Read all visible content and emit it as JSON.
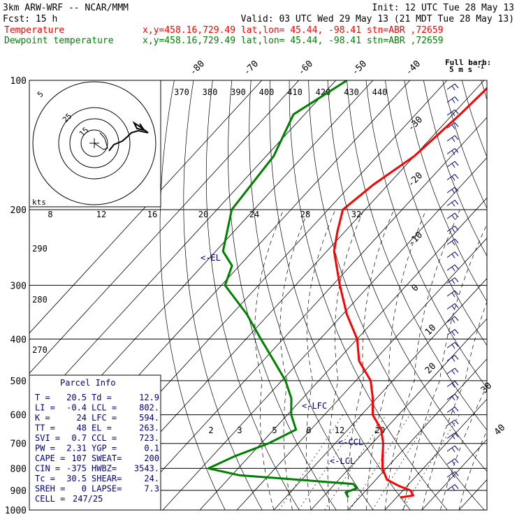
{
  "header": {
    "model": "3km ARW-WRF -- NCAR/MMM",
    "init": "Init: 12 UTC Tue 28 May 13",
    "fcst": "Fcst:   15 h",
    "valid": "Valid: 03 UTC Wed 29 May 13 (21 MDT Tue 28 May 13)",
    "temp_label": "Temperature",
    "temp_loc": "x,y=458.16,729.49   lat,lon= 45.44, -98.41   stn=ABR ,72659",
    "dew_label": "Dewpoint temperature",
    "dew_loc": "x,y=458.16,729.49   lat,lon= 45.44, -98.41   stn=ABR ,72659"
  },
  "colors": {
    "temperature": "#ff0000",
    "dewpoint": "#008000",
    "parcel": "#000080",
    "labels": "#000080"
  },
  "full_barb": {
    "line1": "Full barb:",
    "line2": "5 m s",
    "exponent": "-1"
  },
  "parcel_info": {
    "title": "Parcel Info",
    "rows": [
      [
        "T  =",
        "20.5",
        "Td =",
        "12.9"
      ],
      [
        "LI =",
        "-0.4",
        "LCL =",
        "802."
      ],
      [
        "K  =",
        "24",
        "LFC =",
        "594."
      ],
      [
        "TT =",
        "48",
        "EL =",
        "263."
      ],
      [
        "SVI =",
        "0.7",
        "CCL =",
        "723."
      ],
      [
        "PW =",
        "2.31",
        "YGP =",
        "0.1"
      ],
      [
        "CAPE =",
        "107",
        "SWEAT=",
        "200"
      ],
      [
        "CIN =",
        "-375",
        "HWBZ=",
        "3543."
      ],
      [
        "Tc =",
        "30.5",
        "SHEAR=",
        "24."
      ],
      [
        "SREH =",
        "0",
        "LAPSE=",
        "7.3"
      ],
      [
        "CELL =",
        "247/25",
        "",
        ""
      ]
    ]
  },
  "levels": {
    "el": "<-EL",
    "lfc": "<-LFC",
    "ccl": "<-CCL",
    "lcl": "<-LCL"
  },
  "hodograph": {
    "kts_label": "kts",
    "ring_labels": [
      "5",
      "25",
      "15"
    ]
  },
  "chart_data": {
    "type": "line",
    "title": "",
    "xlabel": "",
    "ylabel": "",
    "y_scale": "log-pressure",
    "ylim_hpa": [
      1000,
      100
    ],
    "pressure_ticks": [
      "100",
      "200",
      "300",
      "400",
      "500",
      "600",
      "700",
      "800",
      "900",
      "1000"
    ],
    "isotherm_labels": [
      "-80",
      "-70",
      "-60",
      "-50",
      "-40",
      "-30",
      "-20",
      "-10",
      "0",
      "10",
      "20",
      "30",
      "40"
    ],
    "dry_adiabat_labels_top": [
      "370",
      "380",
      "390",
      "400",
      "410",
      "420",
      "430",
      "440"
    ],
    "dry_adiabat_labels_left": [
      "290",
      "280",
      "270"
    ],
    "mixing_ratio_labels_mid": [
      "8",
      "12",
      "16",
      "20",
      "24",
      "28",
      "32"
    ],
    "mixing_ratio_labels_low": [
      "2",
      "3",
      "5",
      "8",
      "12",
      "20"
    ],
    "series": [
      {
        "name": "Temperature",
        "color": "#ff0000",
        "points": [
          [
            100,
            -57
          ],
          [
            120,
            -58
          ],
          [
            150,
            -60
          ],
          [
            175,
            -64
          ],
          [
            200,
            -66
          ],
          [
            225,
            -62
          ],
          [
            250,
            -58
          ],
          [
            300,
            -48
          ],
          [
            350,
            -39
          ],
          [
            400,
            -30
          ],
          [
            450,
            -24
          ],
          [
            500,
            -16
          ],
          [
            550,
            -11
          ],
          [
            600,
            -7
          ],
          [
            650,
            -1
          ],
          [
            700,
            3
          ],
          [
            750,
            6
          ],
          [
            800,
            9
          ],
          [
            850,
            13
          ],
          [
            880,
            18
          ],
          [
            900,
            22
          ],
          [
            925,
            24
          ],
          [
            935,
            21
          ]
        ]
      },
      {
        "name": "Dewpoint temperature",
        "color": "#008000",
        "points": [
          [
            100,
            -97
          ],
          [
            120,
            -103
          ],
          [
            150,
            -98
          ],
          [
            200,
            -96
          ],
          [
            250,
            -88
          ],
          [
            270,
            -82
          ],
          [
            300,
            -79
          ],
          [
            350,
            -66
          ],
          [
            400,
            -56
          ],
          [
            450,
            -47
          ],
          [
            500,
            -39
          ],
          [
            550,
            -33
          ],
          [
            600,
            -29
          ],
          [
            650,
            -24
          ],
          [
            700,
            -28
          ],
          [
            750,
            -34
          ],
          [
            800,
            -38
          ],
          [
            830,
            -28
          ],
          [
            870,
            5
          ],
          [
            890,
            7
          ],
          [
            910,
            5
          ],
          [
            935,
            7
          ]
        ]
      }
    ]
  }
}
